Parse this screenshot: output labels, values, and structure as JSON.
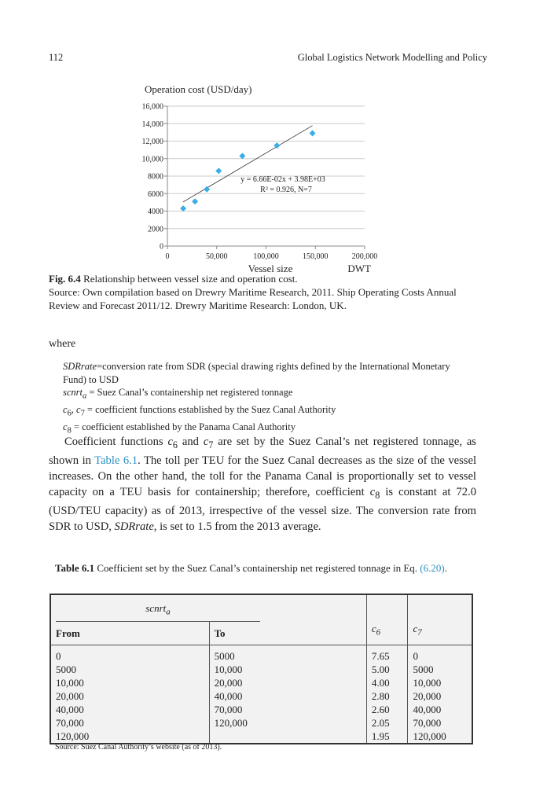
{
  "header": {
    "page_number": "112",
    "running_title": "Global Logistics Network Modelling and Policy"
  },
  "figure": {
    "label": "Fig. 6.4",
    "caption": " Relationship between vessel size and operation cost.",
    "source": "Source: Own compilation based on Drewry Maritime Research, 2011. Ship Operating Costs Annual Review and Forecast 2011/12. Drewry Maritime Research: London, UK."
  },
  "chart_data": {
    "type": "scatter",
    "ylabel": "Operation cost (USD/day)",
    "xlabel": "Vessel size",
    "xunit": "DWT",
    "xlim": [
      0,
      200000
    ],
    "ylim": [
      0,
      16000
    ],
    "xticks": [
      "0",
      "50,000",
      "100,000",
      "150,000",
      "200,000"
    ],
    "yticks": [
      "0",
      "2000",
      "4000",
      "6000",
      "8000",
      "10,000",
      "12,000",
      "14,000",
      "16,000"
    ],
    "grid": "horizontal",
    "points": [
      [
        16000,
        4300
      ],
      [
        28000,
        5100
      ],
      [
        40000,
        6500
      ],
      [
        52000,
        8600
      ],
      [
        76000,
        10300
      ],
      [
        111000,
        11500
      ],
      [
        147000,
        12900
      ]
    ],
    "trendline": {
      "slope": 0.0666,
      "intercept": 3980,
      "x_range": [
        16000,
        147000
      ]
    },
    "annotation": [
      "y = 6.66E-02x + 3.98E+03",
      "R² = 0.926, N=7"
    ],
    "marker_color": "#3aaee6"
  },
  "where": "where",
  "definitions": [
    {
      "term": "SDRrate",
      "text": "=conversion rate from SDR (special drawing rights defined by the International Monetary Fund) to USD"
    },
    {
      "term": "scnrt",
      "sub": "a",
      "text": " = Suez Canal’s containership net registered tonnage"
    },
    {
      "term": "c",
      "sub": "6",
      "term2": ", c",
      "sub2": "7",
      "text": " = coefficient functions established by the Suez Canal Authority"
    },
    {
      "term": "c",
      "sub": "8",
      "text": " = coefficient established by the Panama Canal Authority"
    }
  ],
  "paragraph": {
    "p1": "Coefficient functions ",
    "c6": "c",
    "c6sub": "6",
    "p2": " and ",
    "c7": "c",
    "c7sub": "7",
    "p3": " are set by the Suez Canal’s net registered tonnage, as shown in ",
    "ref": "Table 6.1",
    "p4": ". The toll per TEU for the Suez Canal decreases as the size of the vessel increases. On the other hand, the toll for the Panama Canal is proportionally set to vessel capacity on a TEU basis for containership; therefore, coefficient ",
    "c8": "c",
    "c8sub": "8",
    "p5": " is constant at 72.0 (USD/TEU capacity) as of 2013, irrespective of the vessel size. The conversion rate from SDR to USD, ",
    "sdr": "SDRrate",
    "p6": ", is set to 1.5 from the 2013 average."
  },
  "table": {
    "label": "Table 6.1",
    "caption": " Coefficient set by the Suez Canal’s containership net registered tonnage in Eq. ",
    "eq": "(6.20)",
    "eq_end": ".",
    "group_header": "scnrt",
    "group_sub": "a",
    "columns": [
      "From",
      "To",
      "c6",
      "c7"
    ],
    "rows": [
      [
        "0",
        "5000",
        "7.65",
        "0"
      ],
      [
        "5000",
        "10,000",
        "5.00",
        "5000"
      ],
      [
        "10,000",
        "20,000",
        "4.00",
        "10,000"
      ],
      [
        "20,000",
        "40,000",
        "2.80",
        "20,000"
      ],
      [
        "40,000",
        "70,000",
        "2.60",
        "40,000"
      ],
      [
        "70,000",
        "120,000",
        "2.05",
        "70,000"
      ],
      [
        "120,000",
        "",
        "1.95",
        "120,000"
      ]
    ],
    "source": "Source: Suez Canal Authority’s website (as of 2013)."
  }
}
